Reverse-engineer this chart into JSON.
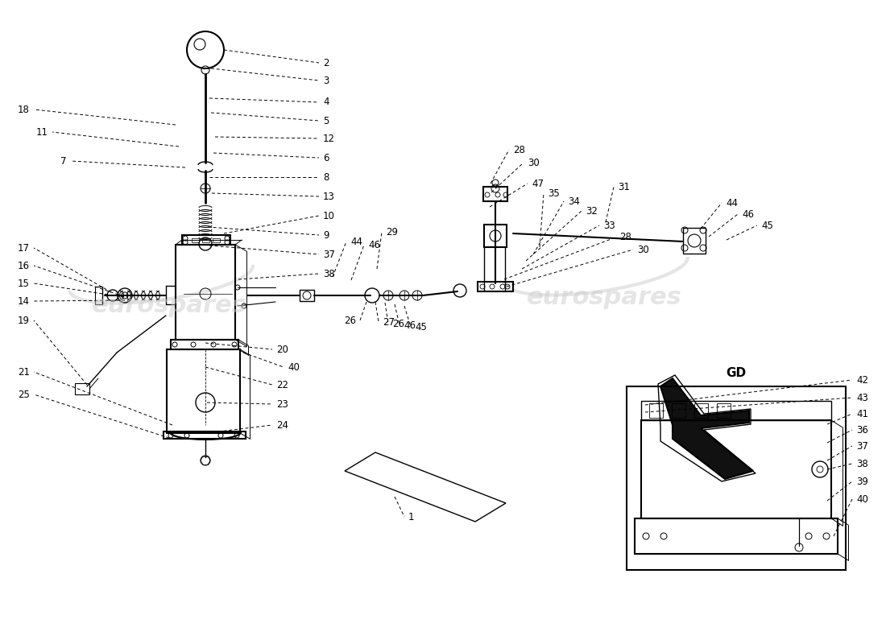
{
  "bg_color": "#ffffff",
  "watermark_color": "#cccccc",
  "watermark_text": "eurospares",
  "line_color": "#000000",
  "fig_width": 11.0,
  "fig_height": 8.0
}
